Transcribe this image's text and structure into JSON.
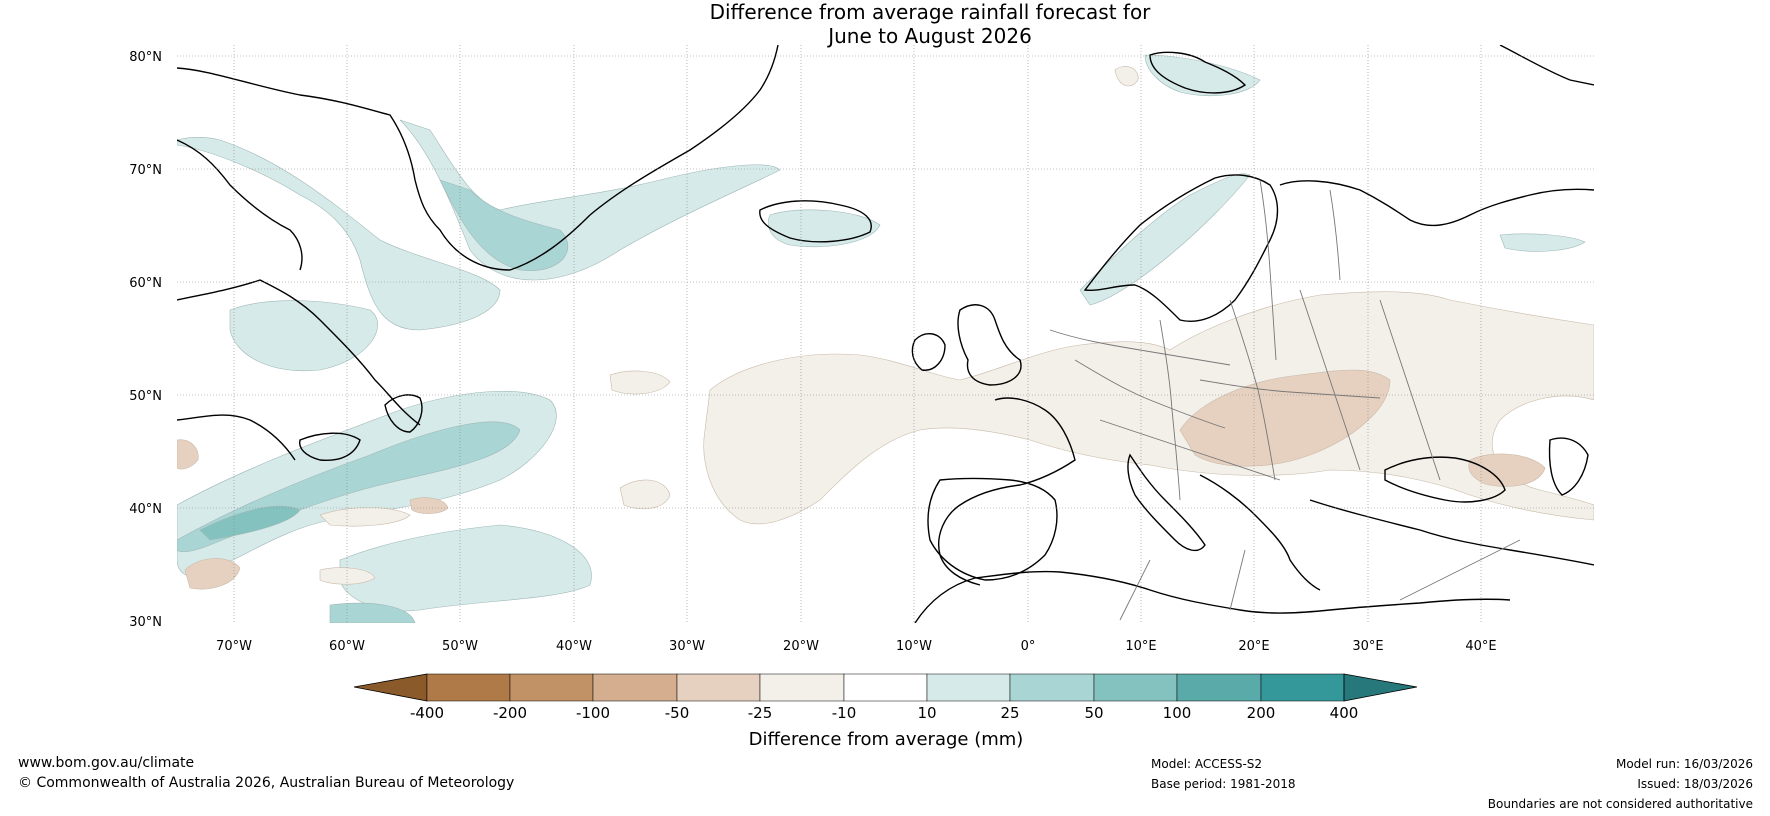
{
  "title": {
    "line1": "Difference from average rainfall forecast for",
    "line2": "June to August 2026"
  },
  "latitude_labels": [
    "80°N",
    "70°N",
    "60°N",
    "50°N",
    "40°N",
    "30°N"
  ],
  "longitude_labels": [
    "70°W",
    "60°W",
    "50°W",
    "40°W",
    "30°W",
    "20°W",
    "10°W",
    "0°",
    "10°E",
    "20°E",
    "30°E",
    "40°E"
  ],
  "colorbar": {
    "ticks": [
      "-400",
      "-200",
      "-100",
      "-50",
      "-25",
      "-10",
      "10",
      "25",
      "50",
      "100",
      "200",
      "400"
    ],
    "colors": [
      "#8b5a2b",
      "#b07a48",
      "#c29267",
      "#d4ae8e",
      "#e6d1c0",
      "#f3efe9",
      "#ffffff",
      "#d6eae9",
      "#a9d5d4",
      "#84c2bf",
      "#5aaaa9",
      "#34979a",
      "#26787a"
    ],
    "label": "Difference from average (mm)"
  },
  "footer": {
    "website": "www.bom.gov.au/climate",
    "copyright": "© Commonwealth of Australia 2026, Australian Bureau of Meteorology",
    "model": "Model: ACCESS-S2",
    "base_period": "Base period: 1981-2018",
    "model_run": "Model run: 16/03/2026",
    "issued": "Issued: 18/03/2026",
    "disclaimer": "Boundaries are not considered authoritative"
  }
}
